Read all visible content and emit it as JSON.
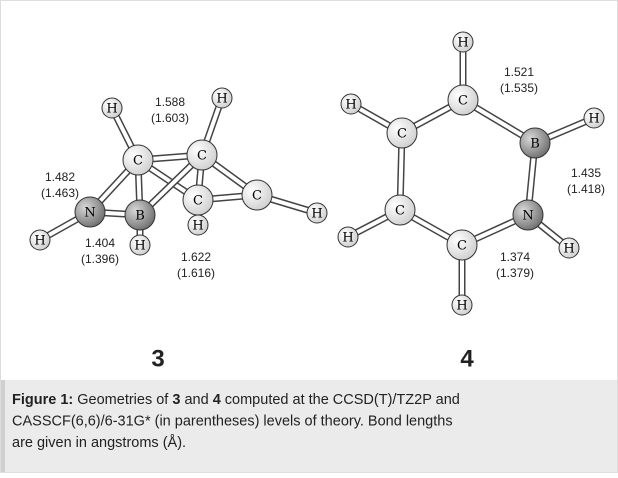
{
  "molecules": [
    {
      "number": "3",
      "atoms": [
        "H",
        "H",
        "C",
        "C",
        "C",
        "C",
        "N",
        "B",
        "H",
        "H",
        "H",
        "H"
      ],
      "bond_lengths": [
        {
          "value": "1.588",
          "alt": "(1.603)"
        },
        {
          "value": "1.482",
          "alt": "(1.463)"
        },
        {
          "value": "1.404",
          "alt": "(1.396)"
        },
        {
          "value": "1.622",
          "alt": "(1.616)"
        }
      ]
    },
    {
      "number": "4",
      "atoms": [
        "H",
        "C",
        "B",
        "H",
        "N",
        "H",
        "C",
        "H",
        "C",
        "H",
        "C",
        "H"
      ],
      "bond_lengths": [
        {
          "value": "1.521",
          "alt": "(1.535)"
        },
        {
          "value": "1.435",
          "alt": "(1.418)"
        },
        {
          "value": "1.374",
          "alt": "(1.379)"
        }
      ]
    }
  ],
  "caption": {
    "lines": [
      [
        {
          "text": "Figure 1:",
          "bold": true
        },
        {
          "text": " Geometries of ",
          "bold": false
        },
        {
          "text": "3",
          "bold": true
        },
        {
          "text": " and ",
          "bold": false
        },
        {
          "text": "4",
          "bold": true
        },
        {
          "text": " computed at the CCSD(T)/TZ2P and",
          "bold": false
        }
      ],
      [
        {
          "text": "CASSCF(6,6)/6-31G* (in parentheses) levels of theory. Bond lengths",
          "bold": false
        }
      ],
      [
        {
          "text": "are given in angstroms (Å).",
          "bold": false
        }
      ]
    ]
  }
}
